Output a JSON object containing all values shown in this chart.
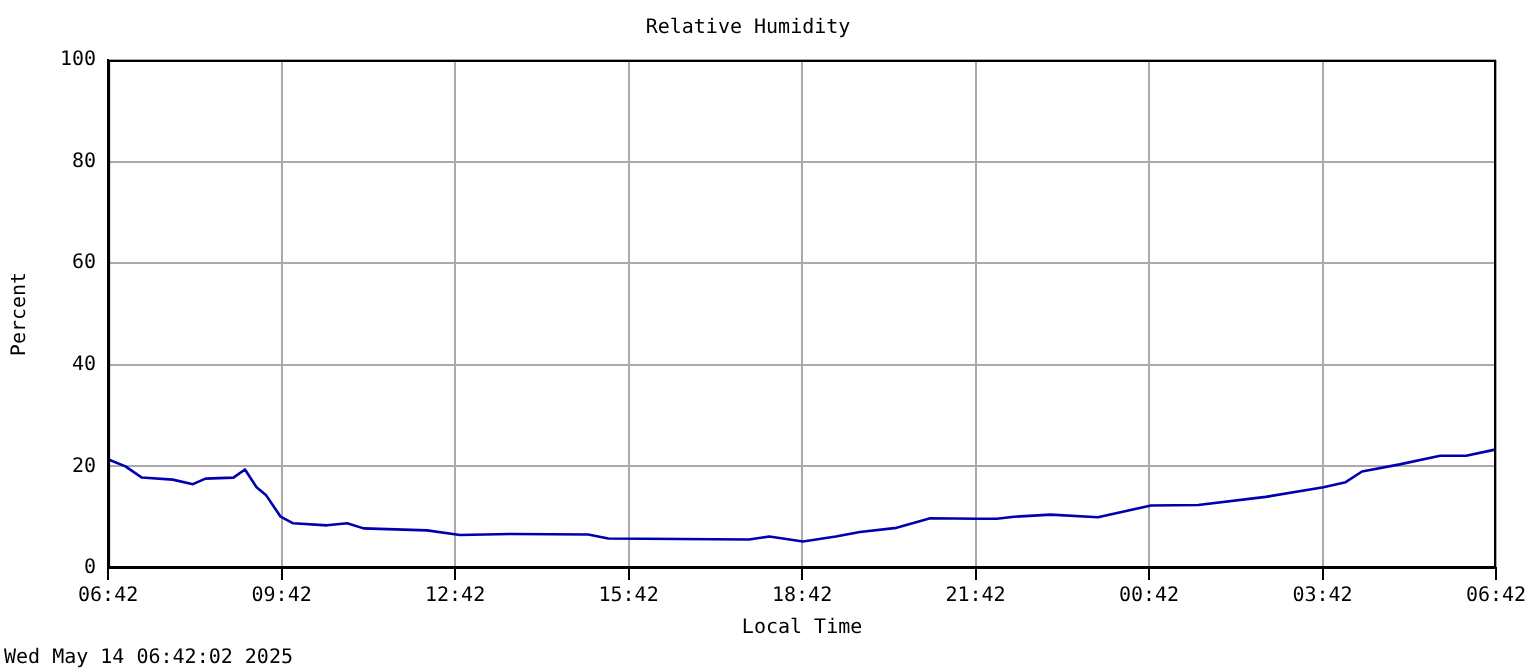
{
  "chart_data": {
    "type": "line",
    "title": "Relative Humidity",
    "xlabel": "Local Time",
    "ylabel": "Percent",
    "annotations": [
      "Wed May 14 06:42:02 2025"
    ],
    "xlim": [
      "2025-05-13T06:42",
      "2025-05-14T06:42"
    ],
    "xticks": [
      {
        "value": "2025-05-13T06:42",
        "label": "06:42"
      },
      {
        "value": "2025-05-13T09:42",
        "label": "09:42"
      },
      {
        "value": "2025-05-13T12:42",
        "label": "12:42"
      },
      {
        "value": "2025-05-13T15:42",
        "label": "15:42"
      },
      {
        "value": "2025-05-13T18:42",
        "label": "18:42"
      },
      {
        "value": "2025-05-13T21:42",
        "label": "21:42"
      },
      {
        "value": "2025-05-14T00:42",
        "label": "00:42"
      },
      {
        "value": "2025-05-14T03:42",
        "label": "03:42"
      },
      {
        "value": "2025-05-14T06:42",
        "label": "06:42"
      }
    ],
    "ylim": [
      0,
      100
    ],
    "yticks": [
      0,
      20,
      40,
      60,
      80,
      100
    ],
    "grid": true,
    "marker": "none",
    "line_style": "solid",
    "series": [
      {
        "color": "#0000b0",
        "x": [
          "2025-05-13T06:43",
          "2025-05-13T07:00",
          "2025-05-13T07:17",
          "2025-05-13T07:49",
          "2025-05-13T08:10",
          "2025-05-13T08:23",
          "2025-05-13T08:52",
          "2025-05-13T09:04",
          "2025-05-13T09:16",
          "2025-05-13T09:26",
          "2025-05-13T09:41",
          "2025-05-13T09:54",
          "2025-05-13T10:29",
          "2025-05-13T10:50",
          "2025-05-13T11:07",
          "2025-05-13T12:13",
          "2025-05-13T12:47",
          "2025-05-13T13:40",
          "2025-05-13T15:00",
          "2025-05-13T15:21",
          "2025-05-13T17:47",
          "2025-05-13T18:08",
          "2025-05-13T18:43",
          "2025-05-13T19:17",
          "2025-05-13T19:42",
          "2025-05-13T20:20",
          "2025-05-13T20:55",
          "2025-05-13T21:44",
          "2025-05-13T22:04",
          "2025-05-13T22:22",
          "2025-05-13T23:00",
          "2025-05-13T23:49",
          "2025-05-14T00:44",
          "2025-05-14T01:33",
          "2025-05-14T02:43",
          "2025-05-14T03:43",
          "2025-05-14T04:06",
          "2025-05-14T04:23",
          "2025-05-14T05:02",
          "2025-05-14T05:44",
          "2025-05-14T06:11",
          "2025-05-14T06:41"
        ],
        "values": [
          21.3,
          20.0,
          17.8,
          17.4,
          16.5,
          17.6,
          17.8,
          19.4,
          15.9,
          14.3,
          10.1,
          8.8,
          8.4,
          8.8,
          7.8,
          7.4,
          6.5,
          6.7,
          6.6,
          5.8,
          5.6,
          6.2,
          5.2,
          6.2,
          7.1,
          7.9,
          9.8,
          9.7,
          9.7,
          10.1,
          10.5,
          10.0,
          12.3,
          12.4,
          14.0,
          15.9,
          16.9,
          19.0,
          20.4,
          22.1,
          22.1,
          23.3
        ]
      }
    ]
  }
}
